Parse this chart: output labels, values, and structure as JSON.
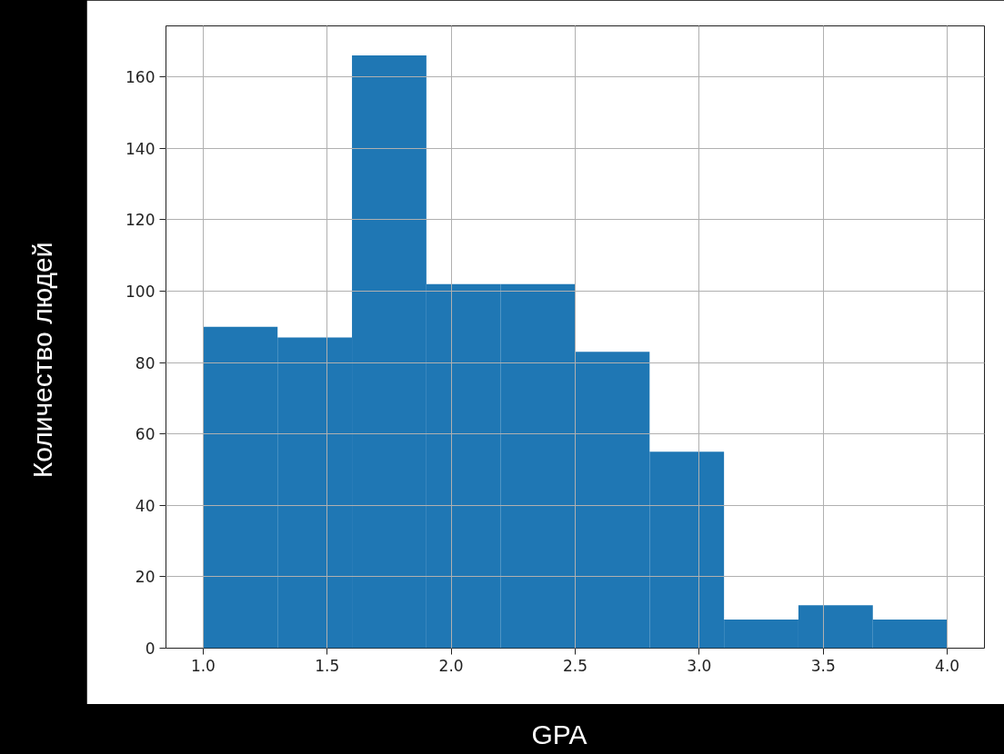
{
  "chart_data": {
    "type": "histogram",
    "xlabel": "GPA",
    "ylabel": "Количество людей",
    "bins": [
      1.0,
      1.3,
      1.6,
      1.9,
      2.2,
      2.5,
      2.8,
      3.1,
      3.4,
      3.7,
      4.0
    ],
    "values": [
      90,
      87,
      166,
      102,
      102,
      83,
      55,
      8,
      12,
      8
    ],
    "color": "#1f77b4",
    "xlim": [
      0.85,
      4.15
    ],
    "xticks": [
      {
        "value": 1.0,
        "label": "1.0"
      },
      {
        "value": 1.5,
        "label": "1.5"
      },
      {
        "value": 2.0,
        "label": "2.0"
      },
      {
        "value": 2.5,
        "label": "2.5"
      },
      {
        "value": 3.0,
        "label": "3.0"
      },
      {
        "value": 3.5,
        "label": "3.5"
      },
      {
        "value": 4.0,
        "label": "4.0"
      }
    ],
    "ylim": [
      0,
      174.3
    ],
    "yticks": [
      0,
      20,
      40,
      60,
      80,
      100,
      120,
      140,
      160
    ],
    "grid": true
  }
}
